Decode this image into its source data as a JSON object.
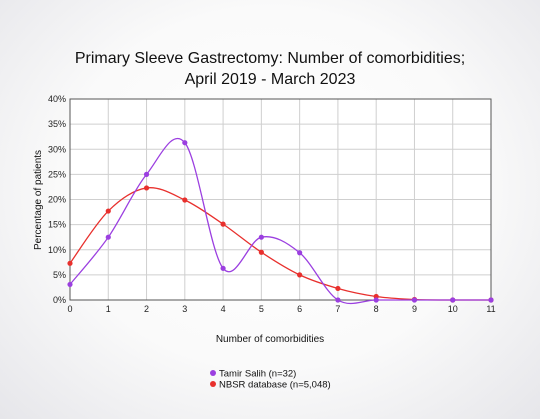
{
  "chart_data": {
    "type": "line",
    "title_line1": "Primary Sleeve Gastrectomy: Number of comorbidities;",
    "title_line2": "April 2019 - March 2023",
    "xlabel": "Number of comorbidities",
    "ylabel": "Percentage of patients",
    "x": [
      0,
      1,
      2,
      3,
      4,
      5,
      6,
      7,
      8,
      9,
      10,
      11
    ],
    "xlim": [
      0,
      11
    ],
    "ylim": [
      0,
      40
    ],
    "yticks": [
      0,
      5,
      10,
      15,
      20,
      25,
      30,
      35,
      40
    ],
    "ytick_labels": [
      "0%",
      "5%",
      "10%",
      "15%",
      "20%",
      "25%",
      "30%",
      "35%",
      "40%"
    ],
    "grid": true,
    "legend_position": "bottom",
    "series": [
      {
        "name": "Tamir Salih (n=32)",
        "color": "#9b3fe0",
        "values": [
          3.1,
          12.5,
          25.0,
          31.3,
          6.3,
          12.5,
          9.4,
          0,
          0,
          0,
          0,
          0
        ]
      },
      {
        "name": "NBSR database (n=5,048)",
        "color": "#e8302d",
        "values": [
          7.3,
          17.7,
          22.3,
          19.9,
          15.1,
          9.5,
          5.0,
          2.3,
          0.7,
          0.1,
          0.0,
          0.0
        ]
      }
    ]
  }
}
